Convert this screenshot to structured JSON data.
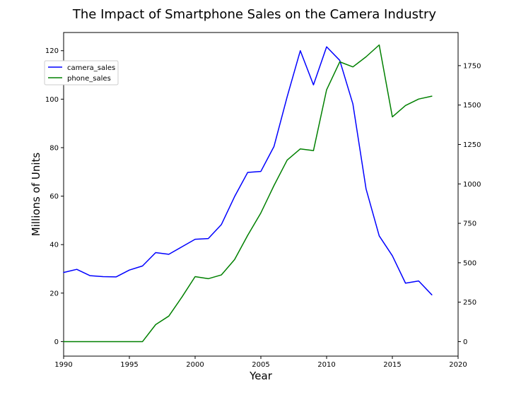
{
  "chart_data": {
    "type": "line",
    "title": "The Impact of Smartphone Sales on the Camera Industry",
    "xlabel": "Year",
    "ylabel": "Millions of Units",
    "y2label": "",
    "xlim": [
      1990,
      2020
    ],
    "ylim": [
      -6,
      127.5
    ],
    "y2lim": [
      -92,
      1960
    ],
    "xticks": [
      1990,
      1995,
      2000,
      2005,
      2010,
      2015,
      2020
    ],
    "yticks": [
      0,
      20,
      40,
      60,
      80,
      100,
      120
    ],
    "y2ticks": [
      0,
      250,
      500,
      750,
      1000,
      1250,
      1500,
      1750
    ],
    "grid": false,
    "legend": "upper-left",
    "x": [
      1990,
      1991,
      1992,
      1993,
      1994,
      1995,
      1996,
      1997,
      1998,
      1999,
      2000,
      2001,
      2002,
      2003,
      2004,
      2005,
      2006,
      2007,
      2008,
      2009,
      2010,
      2011,
      2012,
      2013,
      2014,
      2015,
      2016,
      2017,
      2018
    ],
    "series": [
      {
        "name": "camera_sales",
        "axis": "left",
        "color": "#0000ff",
        "values": [
          28.5,
          29.8,
          27.2,
          26.8,
          26.7,
          29.5,
          31.2,
          36.7,
          36.0,
          39.1,
          42.2,
          42.5,
          48.3,
          59.8,
          69.8,
          70.2,
          80.5,
          101.0,
          120.0,
          105.9,
          121.6,
          116.0,
          98.0,
          63.0,
          43.6,
          35.4,
          24.1,
          25.0,
          19.3
        ]
      },
      {
        "name": "phone_sales",
        "axis": "right",
        "color": "#008000",
        "values": [
          0,
          0,
          0,
          0,
          0,
          0,
          0,
          108,
          162,
          283,
          412,
          399,
          423,
          520,
          674,
          816,
          990,
          1151,
          1222,
          1211,
          1597,
          1774,
          1742,
          1806,
          1881,
          1425,
          1497,
          1538,
          1556
        ]
      }
    ]
  }
}
